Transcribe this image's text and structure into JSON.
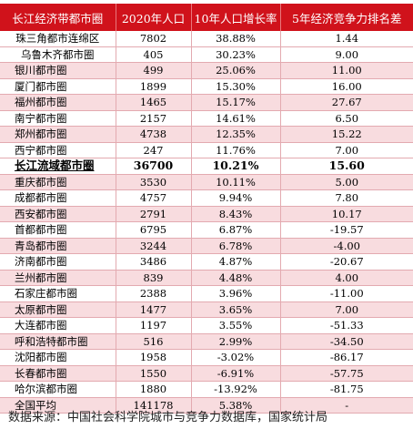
{
  "table": {
    "headers": [
      "长江经济带都市圈",
      "2020年人口",
      "10年人口增长率",
      "5年经济竞争力排名差"
    ],
    "rows": [
      {
        "name": "珠三角都市连绵区",
        "pop": "7802",
        "growth": "38.88%",
        "rank": "1.44",
        "style": "plain",
        "align": "center"
      },
      {
        "name": "乌鲁木齐都市圈",
        "pop": "405",
        "growth": "30.23%",
        "rank": "9.00",
        "style": "plain",
        "align": "center"
      },
      {
        "name": "银川都市圈",
        "pop": "499",
        "growth": "25.06%",
        "rank": "11.00",
        "style": "shade",
        "align": "left"
      },
      {
        "name": "厦门都市圈",
        "pop": "1899",
        "growth": "15.30%",
        "rank": "16.00",
        "style": "plain",
        "align": "left"
      },
      {
        "name": "福州都市圈",
        "pop": "1465",
        "growth": "15.17%",
        "rank": "27.67",
        "style": "shade",
        "align": "left"
      },
      {
        "name": "南宁都市圈",
        "pop": "2157",
        "growth": "14.61%",
        "rank": "6.50",
        "style": "plain",
        "align": "left"
      },
      {
        "name": "郑州都市圈",
        "pop": "4738",
        "growth": "12.35%",
        "rank": "15.22",
        "style": "shade",
        "align": "left"
      },
      {
        "name": "西宁都市圈",
        "pop": "247",
        "growth": "11.76%",
        "rank": "7.00",
        "style": "plain",
        "align": "left"
      },
      {
        "name": "长江流域都市圈",
        "pop": "36700",
        "growth": "10.21%",
        "rank": "15.60",
        "style": "bold",
        "align": "left"
      },
      {
        "name": "重庆都市圈",
        "pop": "3530",
        "growth": "10.11%",
        "rank": "5.00",
        "style": "shade",
        "align": "left"
      },
      {
        "name": "成都都市圈",
        "pop": "4757",
        "growth": "9.94%",
        "rank": "7.80",
        "style": "plain",
        "align": "left"
      },
      {
        "name": "西安都市圈",
        "pop": "2791",
        "growth": "8.43%",
        "rank": "10.17",
        "style": "shade",
        "align": "left"
      },
      {
        "name": "首都都市圈",
        "pop": "6795",
        "growth": "6.87%",
        "rank": "-19.57",
        "style": "plain",
        "align": "left"
      },
      {
        "name": "青岛都市圈",
        "pop": "3244",
        "growth": "6.78%",
        "rank": "-4.00",
        "style": "shade",
        "align": "left"
      },
      {
        "name": "济南都市圈",
        "pop": "3486",
        "growth": "4.87%",
        "rank": "-20.67",
        "style": "plain",
        "align": "left"
      },
      {
        "name": "兰州都市圈",
        "pop": "839",
        "growth": "4.48%",
        "rank": "4.00",
        "style": "shade",
        "align": "left"
      },
      {
        "name": "石家庄都市圈",
        "pop": "2388",
        "growth": "3.96%",
        "rank": "-11.00",
        "style": "plain",
        "align": "left"
      },
      {
        "name": "太原都市圈",
        "pop": "1477",
        "growth": "3.65%",
        "rank": "7.00",
        "style": "shade",
        "align": "left"
      },
      {
        "name": "大连都市圈",
        "pop": "1197",
        "growth": "3.55%",
        "rank": "-51.33",
        "style": "plain",
        "align": "left"
      },
      {
        "name": "呼和浩特都市圈",
        "pop": "516",
        "growth": "2.99%",
        "rank": "-34.50",
        "style": "shade",
        "align": "left"
      },
      {
        "name": "沈阳都市圈",
        "pop": "1958",
        "growth": "-3.02%",
        "rank": "-86.17",
        "style": "plain",
        "align": "left"
      },
      {
        "name": "长春都市圈",
        "pop": "1550",
        "growth": "-6.91%",
        "rank": "-57.75",
        "style": "shade",
        "align": "left"
      },
      {
        "name": "哈尔滨都市圈",
        "pop": "1880",
        "growth": "-13.92%",
        "rank": "-81.75",
        "style": "plain",
        "align": "left"
      },
      {
        "name": "全国平均",
        "pop": "141178",
        "growth": "5.38%",
        "rank": "-",
        "style": "shade",
        "align": "left"
      }
    ]
  },
  "source": "数据来源：中国社会科学院城市与竞争力数据库，国家统计局"
}
